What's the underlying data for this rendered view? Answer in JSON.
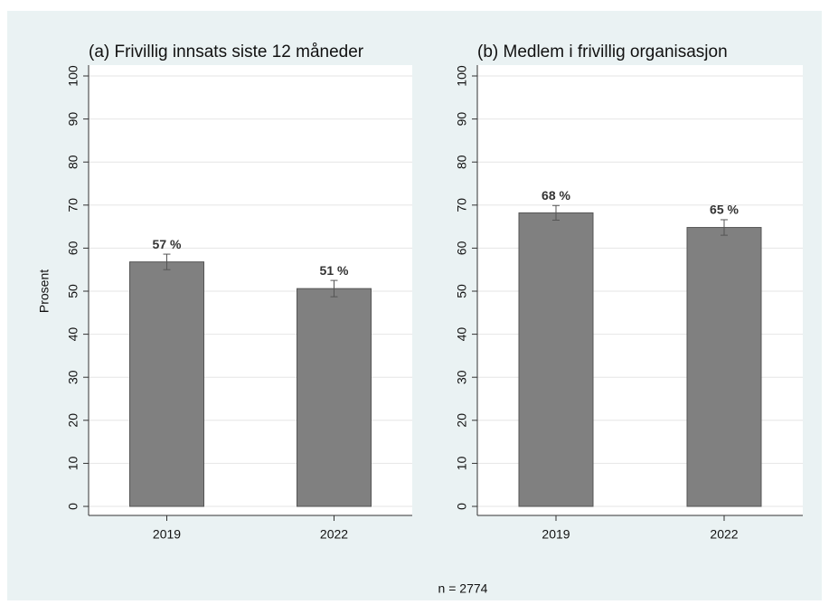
{
  "chart_data": [
    {
      "type": "bar",
      "title": "(a) Frivillig innsats siste 12 måneder",
      "ylabel": "Prosent",
      "categories": [
        "2019",
        "2022"
      ],
      "values": [
        56.8,
        50.6
      ],
      "value_labels": [
        "57 %",
        "51 %"
      ],
      "errors": [
        1.8,
        1.9
      ],
      "color": "#808080",
      "ylim": [
        0,
        100
      ],
      "yticks": [
        0,
        10,
        20,
        30,
        40,
        50,
        60,
        70,
        80,
        90,
        100
      ],
      "grid": true
    },
    {
      "type": "bar",
      "title": "(b) Medlem i frivillig organisasjon",
      "categories": [
        "2019",
        "2022"
      ],
      "values": [
        68.2,
        64.8
      ],
      "value_labels": [
        "68 %",
        "65 %"
      ],
      "errors": [
        1.7,
        1.8
      ],
      "color": "#808080",
      "ylim": [
        0,
        100
      ],
      "yticks": [
        0,
        10,
        20,
        30,
        40,
        50,
        60,
        70,
        80,
        90,
        100
      ],
      "grid": true
    }
  ],
  "note": "n = 2774"
}
